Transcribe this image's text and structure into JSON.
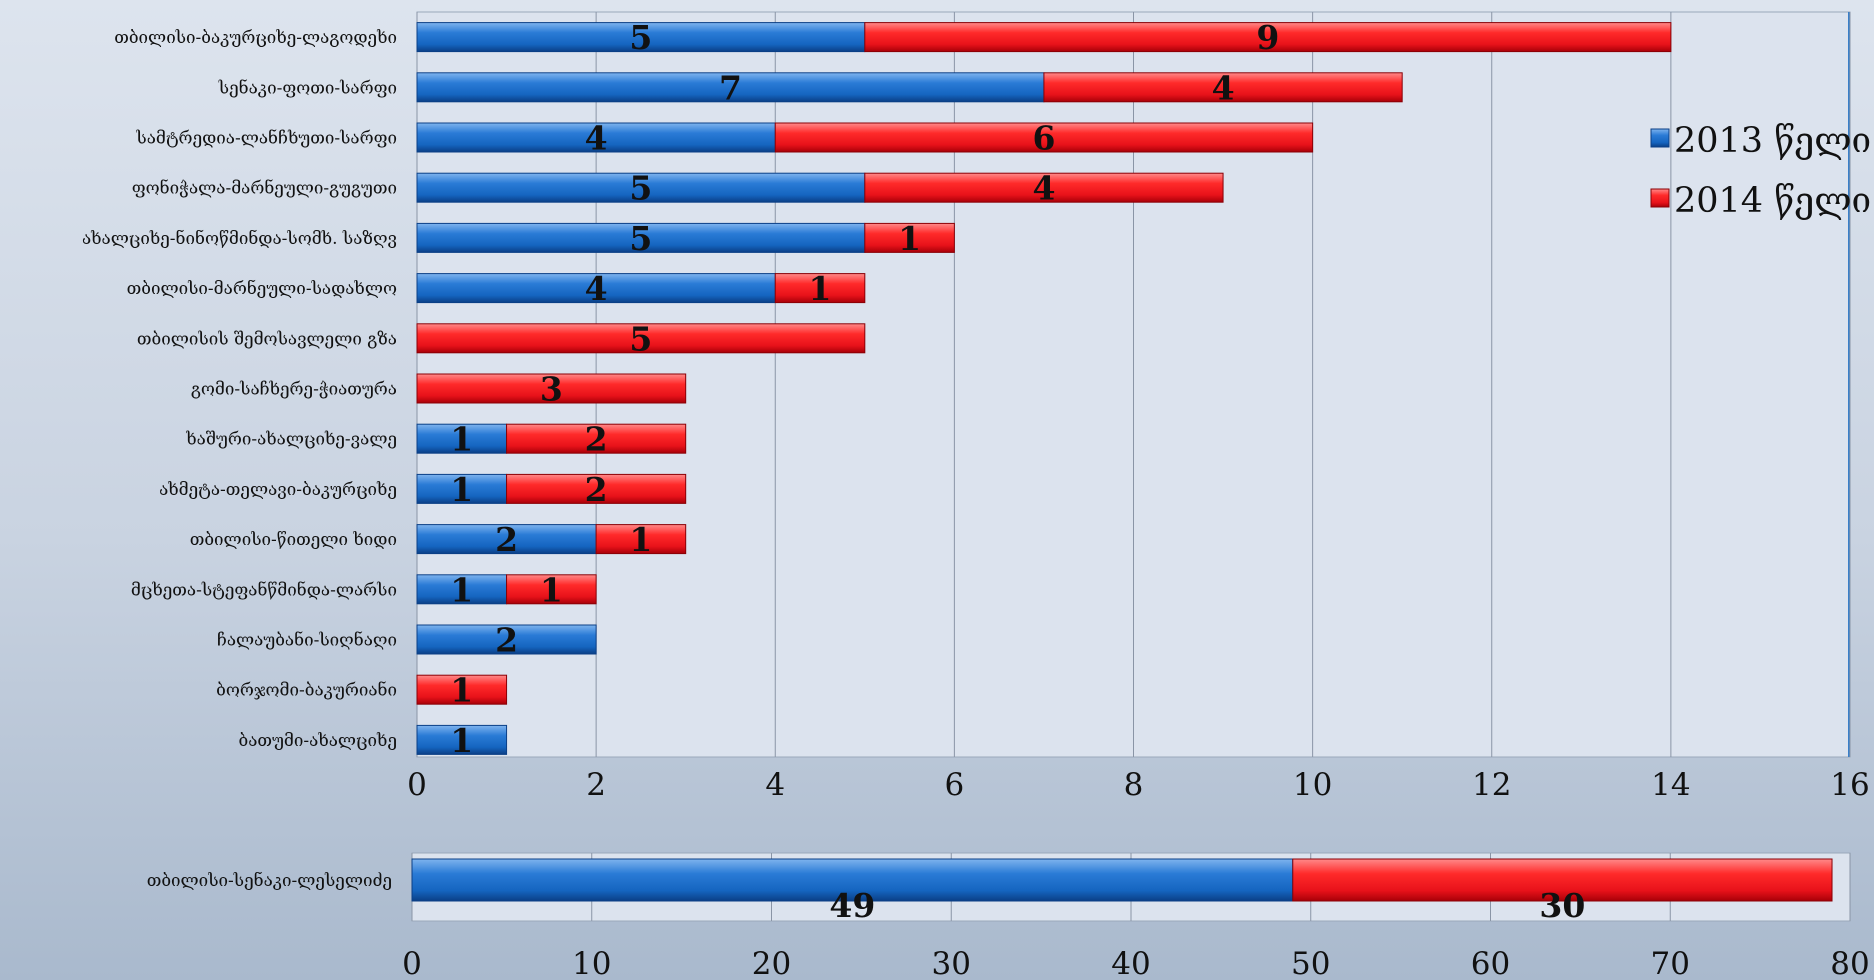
{
  "chart_data": [
    {
      "type": "bar",
      "stacked": true,
      "orientation": "horizontal",
      "categories": [
        "თბილისი-ბაკურციხე-ლაგოდეხი",
        "სენაკი-ფოთი-სარფი",
        "სამტრედია-ლანჩხუთი-სარფი",
        "ფონიჭალა-მარნეული-გუგუთი",
        "ახალციხე-ნინოწმინდა-სომხ. საზღვ",
        "თბილისი-მარნეული-სადახლო",
        "თბილისის შემოსავლელი გზა",
        "გომი-საჩხერე-ჭიათურა",
        "ხაშური-ახალციხე-ვალე",
        "ახმეტა-თელავი-ბაკურციხე",
        "თბილისი-წითელი ხიდი",
        "მცხეთა-სტეფანწმინდა-ლარსი",
        "ჩალაუბანი-სიღნაღი",
        "ბორჯომი-ბაკურიანი",
        "ბათუმი-ახალციხე"
      ],
      "series": [
        {
          "name": "2013 წელი",
          "values": [
            5,
            7,
            4,
            5,
            5,
            4,
            0,
            0,
            1,
            1,
            2,
            1,
            2,
            0,
            1
          ]
        },
        {
          "name": "2014 წელი",
          "values": [
            9,
            4,
            6,
            4,
            1,
            1,
            5,
            3,
            2,
            2,
            1,
            1,
            0,
            1,
            0
          ]
        }
      ],
      "xlim": [
        0,
        16
      ],
      "xticks": [
        "0",
        "2",
        "4",
        "6",
        "8",
        "10",
        "12",
        "14",
        "16"
      ],
      "grid": true,
      "legend": "right",
      "colors": {
        "s2013": "#1565c0",
        "s2014": "#e8121a"
      }
    },
    {
      "type": "bar",
      "stacked": true,
      "orientation": "horizontal",
      "categories": [
        "თბილისი-სენაკი-ლესელიძე"
      ],
      "series": [
        {
          "name": "2013 წელი",
          "values": [
            49
          ]
        },
        {
          "name": "2014 წელი",
          "values": [
            30
          ]
        }
      ],
      "xlim": [
        0,
        80
      ],
      "xticks": [
        "0",
        "10",
        "20",
        "30",
        "40",
        "50",
        "60",
        "70",
        "80"
      ],
      "grid": true,
      "colors": {
        "s2013": "#1565c0",
        "s2014": "#e8121a"
      }
    }
  ]
}
